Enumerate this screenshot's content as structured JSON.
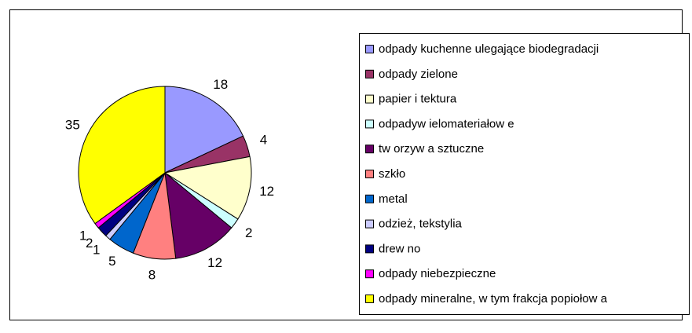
{
  "chart_data": {
    "type": "pie",
    "categories": [
      "odpady kuchenne ulegające biodegradacji",
      "odpady zielone",
      "papier i tektura",
      "odpadyw ielomateriałow e",
      "tw orzyw a sztuczne",
      "szkło",
      "metal",
      "odzież, tekstylia",
      "drew no",
      "odpady niebezpieczne",
      "odpady mineralne, w  tym frakcja popiołow a"
    ],
    "values": [
      18,
      4,
      12,
      2,
      12,
      8,
      5,
      1,
      2,
      1,
      35
    ],
    "colors": [
      "#9999ff",
      "#993366",
      "#ffffcc",
      "#ccffff",
      "#660066",
      "#ff8080",
      "#0066cc",
      "#ccccff",
      "#000080",
      "#ff00ff",
      "#ffff00"
    ],
    "legend": "right"
  }
}
